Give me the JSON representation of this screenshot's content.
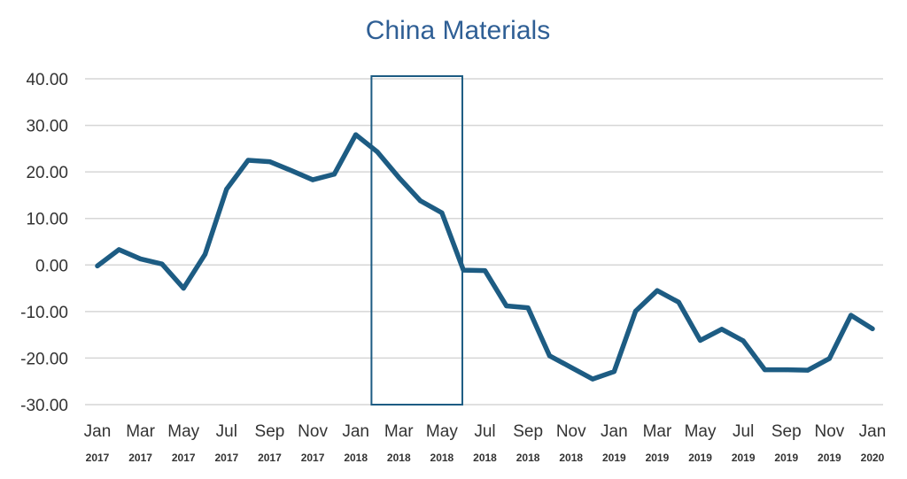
{
  "chart_data": {
    "type": "line",
    "title": "China Materials",
    "xlabel": "",
    "ylabel": "",
    "ylim": [
      -30,
      40
    ],
    "yticks": [
      "40.00",
      "30.00",
      "20.00",
      "10.00",
      "0.00",
      "-10.00",
      "-20.00",
      "-30.00"
    ],
    "ytick_values": [
      40,
      30,
      20,
      10,
      0,
      -10,
      -20,
      -30
    ],
    "grid": "horizontal",
    "x_ticks": [
      {
        "month": "Jan",
        "year": "2017"
      },
      {
        "month": "Mar",
        "year": "2017"
      },
      {
        "month": "May",
        "year": "2017"
      },
      {
        "month": "Jul",
        "year": "2017"
      },
      {
        "month": "Sep",
        "year": "2017"
      },
      {
        "month": "Nov",
        "year": "2017"
      },
      {
        "month": "Jan",
        "year": "2018"
      },
      {
        "month": "Mar",
        "year": "2018"
      },
      {
        "month": "May",
        "year": "2018"
      },
      {
        "month": "Jul",
        "year": "2018"
      },
      {
        "month": "Sep",
        "year": "2018"
      },
      {
        "month": "Nov",
        "year": "2018"
      },
      {
        "month": "Jan",
        "year": "2019"
      },
      {
        "month": "Mar",
        "year": "2019"
      },
      {
        "month": "May",
        "year": "2019"
      },
      {
        "month": "Jul",
        "year": "2019"
      },
      {
        "month": "Sep",
        "year": "2019"
      },
      {
        "month": "Nov",
        "year": "2019"
      },
      {
        "month": "Jan",
        "year": "2020"
      }
    ],
    "x": [
      "2017-01",
      "2017-02",
      "2017-03",
      "2017-04",
      "2017-05",
      "2017-06",
      "2017-07",
      "2017-08",
      "2017-09",
      "2017-10",
      "2017-11",
      "2017-12",
      "2018-01",
      "2018-02",
      "2018-03",
      "2018-04",
      "2018-05",
      "2018-06",
      "2018-07",
      "2018-08",
      "2018-09",
      "2018-10",
      "2018-11",
      "2018-12",
      "2019-01",
      "2019-02",
      "2019-03",
      "2019-04",
      "2019-05",
      "2019-06",
      "2019-07",
      "2019-08",
      "2019-09",
      "2019-10",
      "2019-11",
      "2019-12",
      "2020-01"
    ],
    "series": [
      {
        "values": [
          -0.2,
          3.3,
          1.3,
          0.2,
          -5.0,
          2.3,
          16.3,
          22.5,
          22.2,
          20.3,
          18.3,
          19.5,
          28.0,
          24.3,
          18.8,
          13.8,
          11.2,
          -1.1,
          -1.2,
          -8.8,
          -9.2,
          -19.5,
          -22.0,
          -24.5,
          -22.9,
          -9.9,
          -5.5,
          -8.0,
          -16.2,
          -13.8,
          -16.3,
          -22.5,
          -22.5,
          -22.6,
          -20.1,
          -10.8,
          -13.7
        ],
        "color": "#1d5c83"
      }
    ],
    "highlight_box": {
      "x_start": "2018-02",
      "x_end": "2018-06",
      "color": "#1d5c83"
    }
  }
}
